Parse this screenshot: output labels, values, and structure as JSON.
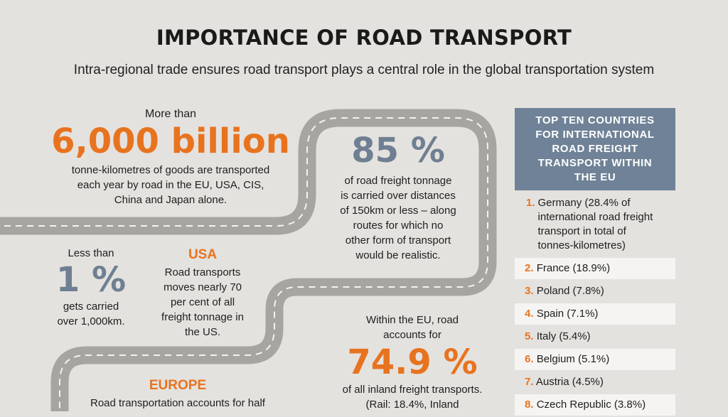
{
  "title": "IMPORTANCE OF ROAD TRANSPORT",
  "subtitle": "Intra-regional trade ensures road transport plays a central role in the global transportation system",
  "stat_6000": {
    "pre": "More than",
    "value": "6,000 billion",
    "desc_lines": [
      "tonne-kilometres of goods are transported",
      "each year by road in the EU, USA, CIS,",
      "China and Japan alone."
    ]
  },
  "stat_85": {
    "value": "85 %",
    "desc_lines": [
      "of road freight tonnage",
      "is carried over distances",
      "of 150km or less – along",
      "routes for which no",
      "other form of transport",
      "would be realistic."
    ]
  },
  "stat_1": {
    "pre": "Less than",
    "value": "1 %",
    "desc_lines": [
      "gets carried",
      "over 1,000km."
    ]
  },
  "usa": {
    "heading": "USA",
    "desc_lines": [
      "Road transports",
      "moves nearly 70",
      "per cent of all",
      "freight tonnage in",
      "the US."
    ]
  },
  "stat_749": {
    "pre_lines": [
      "Within the EU, road",
      "accounts for"
    ],
    "value": "74.9 %",
    "desc_lines": [
      "of all inland freight transports.",
      "(Rail: 18.4%, Inland"
    ]
  },
  "europe": {
    "heading": "EUROPE",
    "desc_lines": [
      "Road transportation accounts for half"
    ]
  },
  "panel": {
    "header_lines": [
      "TOP TEN COUNTRIES",
      "FOR INTERNATIONAL",
      "ROAD FREIGHT",
      "TRANSPORT WITHIN",
      "THE EU"
    ],
    "first": {
      "num": "1.",
      "lines": [
        "Germany (28.4% of",
        "international road freight",
        "transport in total of",
        "tonnes-kilometres)"
      ]
    },
    "items": [
      {
        "num": "2.",
        "text": "France (18.9%)"
      },
      {
        "num": "3.",
        "text": "Poland (7.8%)"
      },
      {
        "num": "4.",
        "text": "Spain (7.1%)"
      },
      {
        "num": "5.",
        "text": "Italy (5.4%)"
      },
      {
        "num": "6.",
        "text": "Belgium (5.1%)"
      },
      {
        "num": "7.",
        "text": "Austria (4.5%)"
      },
      {
        "num": "8.",
        "text": "Czech Republic (3.8%)"
      }
    ]
  },
  "colors": {
    "accent_orange": "#e8731f",
    "slate_blue": "#6f7f93",
    "panel_header": "#6f8297",
    "road_gray": "#a7a5a1",
    "background": "#e4e2de"
  }
}
